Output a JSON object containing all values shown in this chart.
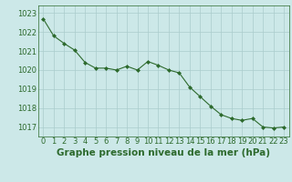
{
  "x": [
    0,
    1,
    2,
    3,
    4,
    5,
    6,
    7,
    8,
    9,
    10,
    11,
    12,
    13,
    14,
    15,
    16,
    17,
    18,
    19,
    20,
    21,
    22,
    23
  ],
  "y": [
    1022.7,
    1021.8,
    1021.4,
    1021.05,
    1020.4,
    1020.1,
    1020.1,
    1020.0,
    1020.2,
    1020.0,
    1020.45,
    1020.25,
    1020.0,
    1019.85,
    1019.1,
    1018.6,
    1018.1,
    1017.65,
    1017.45,
    1017.35,
    1017.45,
    1017.0,
    1016.95,
    1017.0
  ],
  "line_color": "#2d6a2d",
  "marker": "D",
  "marker_size": 2.0,
  "bg_color": "#cce8e8",
  "grid_color": "#aacccc",
  "title": "Graphe pression niveau de la mer (hPa)",
  "ylim": [
    1016.5,
    1023.4
  ],
  "yticks": [
    1017,
    1018,
    1019,
    1020,
    1021,
    1022,
    1023
  ],
  "xticks": [
    0,
    1,
    2,
    3,
    4,
    5,
    6,
    7,
    8,
    9,
    10,
    11,
    12,
    13,
    14,
    15,
    16,
    17,
    18,
    19,
    20,
    21,
    22,
    23
  ],
  "tick_fontsize": 6.0,
  "title_fontsize": 7.5,
  "title_color": "#2d6a2d",
  "tick_color": "#2d6a2d",
  "spine_color": "#2d6a2d",
  "linewidth": 0.8
}
